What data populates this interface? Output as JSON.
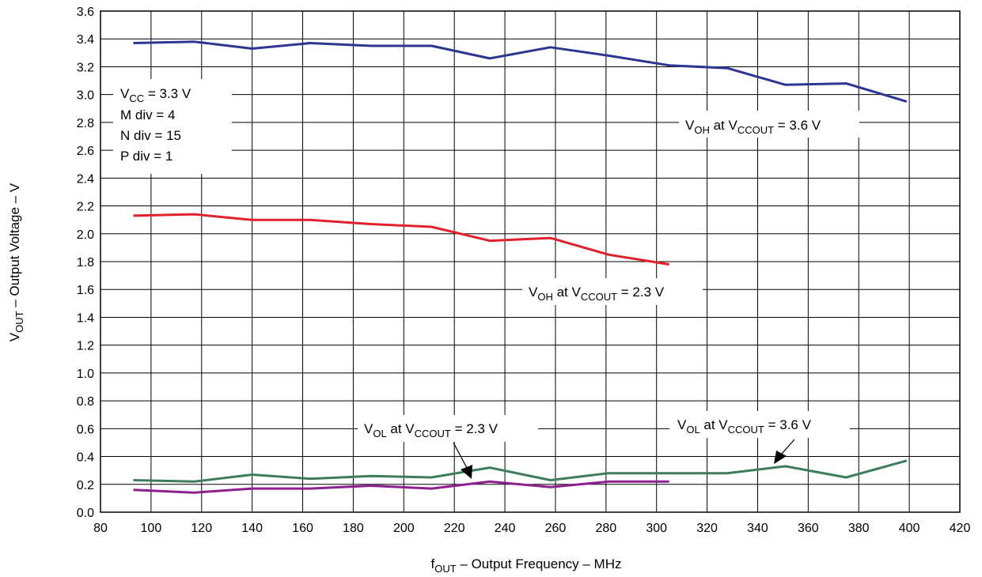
{
  "chart_data": {
    "type": "line",
    "title": "",
    "xlabel": {
      "main": "f",
      "sub": "OUT",
      "rest": " – Output Frequency – MHz"
    },
    "ylabel": {
      "main": "V",
      "sub": "OUT",
      "rest": " – Output Voltage – V"
    },
    "xlim": [
      80,
      420
    ],
    "ylim": [
      0.0,
      3.6
    ],
    "xticks": [
      "80",
      "100",
      "120",
      "140",
      "160",
      "180",
      "200",
      "220",
      "240",
      "260",
      "280",
      "300",
      "320",
      "340",
      "360",
      "380",
      "400",
      "420"
    ],
    "yticks": [
      "0.0",
      "0.2",
      "0.4",
      "0.6",
      "0.8",
      "1.0",
      "1.2",
      "1.4",
      "1.6",
      "1.8",
      "2.0",
      "2.2",
      "2.4",
      "2.6",
      "2.8",
      "3.0",
      "3.2",
      "3.4",
      "3.6"
    ],
    "grid": true,
    "conditions": [
      "V_CC = 3.3 V",
      "M div = 4",
      "N div = 15",
      "P div = 1"
    ],
    "series": [
      {
        "label": "VOH at VCCOUT = 3.6 V",
        "color": "#2b3592",
        "x": [
          93,
          117,
          140,
          163,
          187,
          211,
          234,
          258,
          281,
          305,
          328,
          351,
          375,
          399
        ],
        "y": [
          3.37,
          3.38,
          3.33,
          3.37,
          3.35,
          3.35,
          3.26,
          3.34,
          3.28,
          3.21,
          3.19,
          3.07,
          3.08,
          2.95
        ]
      },
      {
        "label": "VOH at VCCOUT = 2.3 V",
        "color": "#e0202a",
        "x": [
          93,
          117,
          140,
          163,
          187,
          211,
          234,
          258,
          281,
          305
        ],
        "y": [
          2.13,
          2.14,
          2.1,
          2.1,
          2.07,
          2.05,
          1.95,
          1.97,
          1.85,
          1.78
        ]
      },
      {
        "label": "VOL at VCCOUT = 3.6 V",
        "color": "#3e7d5c",
        "x": [
          93,
          117,
          140,
          163,
          187,
          211,
          234,
          258,
          281,
          305,
          328,
          351,
          375,
          399
        ],
        "y": [
          0.23,
          0.22,
          0.27,
          0.24,
          0.26,
          0.25,
          0.32,
          0.23,
          0.28,
          0.28,
          0.28,
          0.33,
          0.25,
          0.37
        ]
      },
      {
        "label": "VOL at VCCOUT = 2.3 V",
        "color": "#8e1f8e",
        "x": [
          93,
          117,
          140,
          163,
          187,
          211,
          234,
          258,
          281,
          305
        ],
        "y": [
          0.16,
          0.14,
          0.17,
          0.17,
          0.19,
          0.17,
          0.22,
          0.18,
          0.22,
          0.22
        ]
      }
    ],
    "annotations": [
      {
        "main": "V",
        "sub": "OH",
        "mid": " at V",
        "sub2": "CCOUT",
        "rest": " = 3.6 V"
      },
      {
        "main": "V",
        "sub": "OH",
        "mid": " at V",
        "sub2": "CCOUT",
        "rest": " = 2.3 V"
      },
      {
        "main": "V",
        "sub": "OL",
        "mid": " at V",
        "sub2": "CCOUT",
        "rest": " = 2.3 V"
      },
      {
        "main": "V",
        "sub": "OL",
        "mid": " at V",
        "sub2": "CCOUT",
        "rest": " = 3.6 V"
      }
    ]
  }
}
